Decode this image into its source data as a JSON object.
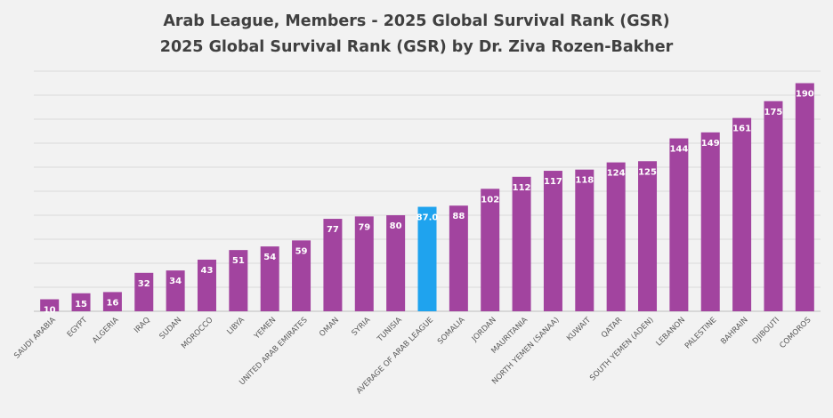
{
  "chart_data": {
    "type": "bar",
    "title": "Arab League, Members - 2025 Global Survival Rank (GSR)",
    "subtitle": "2025 Global Survival Rank (GSR) by Dr. Ziva Rozen-Bakher",
    "xlabel": "",
    "ylabel": "",
    "ylim": [
      0,
      200
    ],
    "grid": true,
    "colors": {
      "bar": "#a2449f",
      "highlight": "#1fa3ee",
      "background": "#f2f2f2",
      "grid": "#d9d9d9"
    },
    "categories": [
      "SAUDI ARABIA",
      "EGYPT",
      "ALGERIA",
      "IRAQ",
      "SUDAN",
      "MOROCCO",
      "LIBYA",
      "YEMEN",
      "UNITED ARAB EMIRATES",
      "OMAN",
      "SYRIA",
      "TUNISIA",
      "AVERAGE OF ARAB LEAGUE",
      "SOMALIA",
      "JORDAN",
      "MAURITANIA",
      "NORTH YEMEN (SANAA)",
      "KUWAIT",
      "QATAR",
      "SOUTH YEMEN (ADEN)",
      "LEBANON",
      "PALESTINE",
      "BAHRAIN",
      "DJIBOUTI",
      "COMOROS"
    ],
    "values": [
      10,
      15,
      16,
      32,
      34,
      43,
      51,
      54,
      59,
      77,
      79,
      80,
      87.0,
      88,
      102,
      112,
      117,
      118,
      124,
      125,
      144,
      149,
      161,
      175,
      190
    ],
    "data_labels": [
      "10",
      "15",
      "16",
      "32",
      "34",
      "43",
      "51",
      "54",
      "59",
      "77",
      "79",
      "80",
      "87.0",
      "88",
      "102",
      "112",
      "117",
      "118",
      "124",
      "125",
      "144",
      "149",
      "161",
      "175",
      "190"
    ],
    "highlight_category": "AVERAGE OF ARAB LEAGUE"
  }
}
